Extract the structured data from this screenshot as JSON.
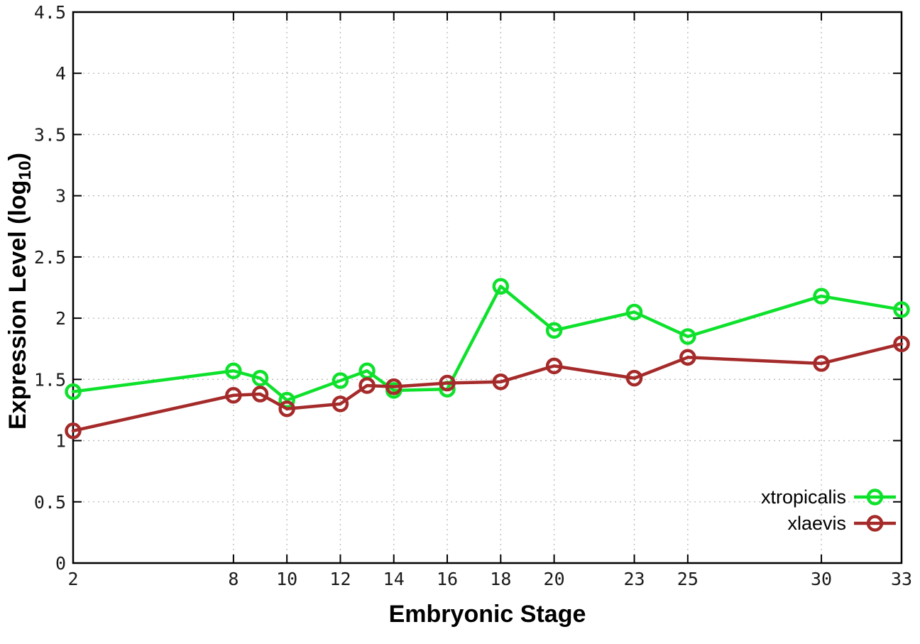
{
  "chart_data": {
    "type": "line",
    "title": "",
    "xlabel": "Embryonic Stage",
    "ylabel": {
      "pre": "Expression Level (log",
      "sub": "10",
      "post": ")"
    },
    "grid": true,
    "legend_position": "inside-bottom-right",
    "xlim": [
      2,
      33
    ],
    "ylim": [
      0,
      4.5
    ],
    "x_ticks": [
      {
        "v": 2,
        "label": "2"
      },
      {
        "v": 8,
        "label": "8"
      },
      {
        "v": 10,
        "label": "10"
      },
      {
        "v": 12,
        "label": "12"
      },
      {
        "v": 14,
        "label": "14"
      },
      {
        "v": 16,
        "label": "16"
      },
      {
        "v": 18,
        "label": "18"
      },
      {
        "v": 20,
        "label": "20"
      },
      {
        "v": 23,
        "label": "23"
      },
      {
        "v": 25,
        "label": "25"
      },
      {
        "v": 30,
        "label": "30"
      },
      {
        "v": 33,
        "label": "33"
      }
    ],
    "y_ticks": [
      {
        "v": 0,
        "label": "0"
      },
      {
        "v": 0.5,
        "label": "0.5"
      },
      {
        "v": 1,
        "label": "1"
      },
      {
        "v": 1.5,
        "label": "1.5"
      },
      {
        "v": 2,
        "label": "2"
      },
      {
        "v": 2.5,
        "label": "2.5"
      },
      {
        "v": 3,
        "label": "3"
      },
      {
        "v": 3.5,
        "label": "3.5"
      },
      {
        "v": 4,
        "label": "4"
      },
      {
        "v": 4.5,
        "label": "4.5"
      }
    ],
    "x": [
      2,
      8,
      9,
      10,
      12,
      13,
      14,
      16,
      18,
      20,
      23,
      25,
      30,
      33
    ],
    "series": [
      {
        "name": "xtropicalis",
        "color": "#0ee12c",
        "values": [
          1.4,
          1.57,
          1.51,
          1.33,
          1.49,
          1.57,
          1.41,
          1.42,
          2.26,
          1.9,
          2.05,
          1.85,
          2.18,
          2.07
        ]
      },
      {
        "name": "xlaevis",
        "color": "#a52a2a",
        "values": [
          1.08,
          1.37,
          1.38,
          1.26,
          1.3,
          1.45,
          1.44,
          1.47,
          1.48,
          1.61,
          1.51,
          1.68,
          1.63,
          1.79
        ]
      }
    ],
    "colors": {
      "background": "#ffffff",
      "border": "#000000",
      "grid": "#b9b9b9",
      "text": "#1a1a1a"
    }
  }
}
